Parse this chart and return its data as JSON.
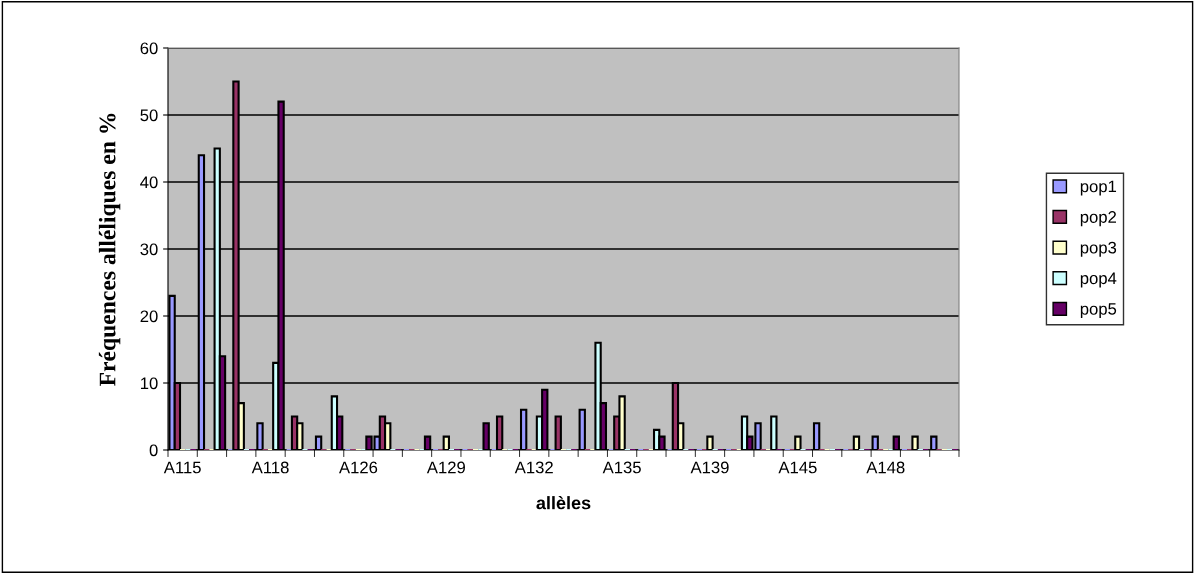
{
  "chart_data": {
    "type": "bar",
    "xlabel": "allèles",
    "ylabel": "Fréquences alléliques en %",
    "categories": [
      "A115",
      null,
      null,
      "A118",
      null,
      null,
      "A126",
      null,
      null,
      "A129",
      null,
      null,
      "A132",
      null,
      null,
      "A135",
      null,
      null,
      "A139",
      null,
      null,
      "A145",
      null,
      null,
      "A148",
      null,
      null
    ],
    "series": [
      {
        "name": "pop1",
        "color": "#9999ff",
        "values": [
          23,
          44,
          0,
          4,
          0,
          2,
          0,
          2,
          0,
          0,
          0,
          0,
          6,
          0,
          6,
          0,
          0,
          0,
          0,
          0,
          4,
          0,
          4,
          0,
          2,
          0,
          2
        ]
      },
      {
        "name": "pop2",
        "color": "#993366",
        "values": [
          10,
          0,
          55,
          0,
          5,
          0,
          0,
          5,
          0,
          0,
          0,
          5,
          0,
          5,
          0,
          5,
          0,
          10,
          0,
          0,
          0,
          0,
          0,
          0,
          0,
          0,
          0
        ]
      },
      {
        "name": "pop3",
        "color": "#ffffcc",
        "values": [
          0,
          0,
          7,
          0,
          4,
          0,
          0,
          4,
          0,
          2,
          0,
          0,
          0,
          0,
          0,
          8,
          0,
          4,
          2,
          0,
          0,
          2,
          0,
          2,
          0,
          2,
          0
        ]
      },
      {
        "name": "pop4",
        "color": "#ccffff",
        "values": [
          0,
          45,
          0,
          13,
          0,
          8,
          0,
          0,
          0,
          0,
          0,
          0,
          5,
          0,
          16,
          0,
          3,
          0,
          0,
          5,
          5,
          0,
          0,
          0,
          0,
          0,
          0
        ]
      },
      {
        "name": "pop5",
        "color": "#660066",
        "values": [
          0,
          14,
          0,
          52,
          0,
          5,
          2,
          0,
          2,
          0,
          4,
          0,
          9,
          0,
          7,
          0,
          2,
          0,
          0,
          2,
          0,
          0,
          0,
          0,
          2,
          0,
          0
        ]
      }
    ],
    "ylim": [
      0,
      60
    ],
    "yticks": [
      0,
      10,
      20,
      30,
      40,
      50,
      60
    ],
    "grid": "y",
    "legend": "right"
  }
}
